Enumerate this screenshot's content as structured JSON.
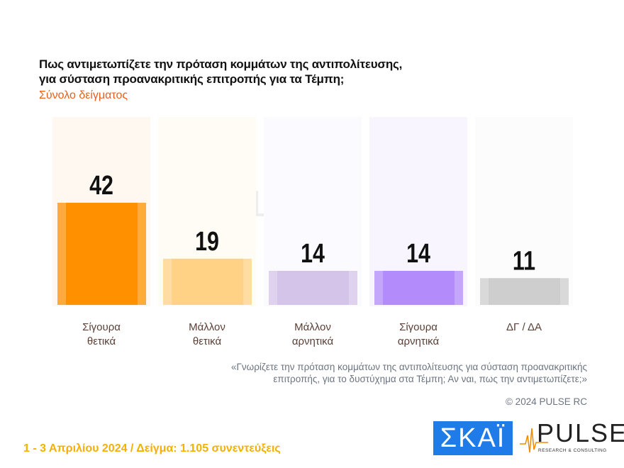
{
  "title_lines": [
    "Πως αντιμετωπίζετε την πρόταση κομμάτων της αντιπολίτευσης,",
    "για σύσταση προανακριτικής επιτροπής για τα Τέμπη;"
  ],
  "subtitle": "Σύνολο δείγματος",
  "chart_data": {
    "type": "bar",
    "categories": [
      [
        "Σίγουρα",
        "θετικά"
      ],
      [
        "Μάλλον",
        "θετικά"
      ],
      [
        "Μάλλον",
        "αρνητικά"
      ],
      [
        "Σίγουρα",
        "αρνητικά"
      ],
      [
        "ΔΓ / ΔΑ"
      ]
    ],
    "values": [
      42,
      19,
      14,
      14,
      11
    ],
    "colors": [
      "#FF9000",
      "#FFD285",
      "#D4C4EA",
      "#B38BFA",
      "#CECECE"
    ],
    "panel_colors": [
      "#FFF8F0",
      "#FFFCF6",
      "#FBFAFE",
      "#F8F5FF",
      "#FCFCFC"
    ],
    "data_labels": true,
    "grid": false
  },
  "watermark": "PULSE",
  "question_note": [
    "«Γνωρίζετε την πρόταση κομμάτων της αντιπολίτευσης για σύσταση προανακριτικής",
    "επιτροπής, για το δυστύχημα στα Τέμπη; Αν ναι, πως την αντιμετωπίζετε;»"
  ],
  "copyright": "© 2024 PULSE RC",
  "footer": "1 - 3  Απριλίου 2024  /  Δείγμα:  1.105 συνεντεύξεις",
  "logos": {
    "skai": "ΣΚΑΪ",
    "pulse": "PULSE",
    "pulse_tagline": "RESEARCH & CONSULTING"
  }
}
